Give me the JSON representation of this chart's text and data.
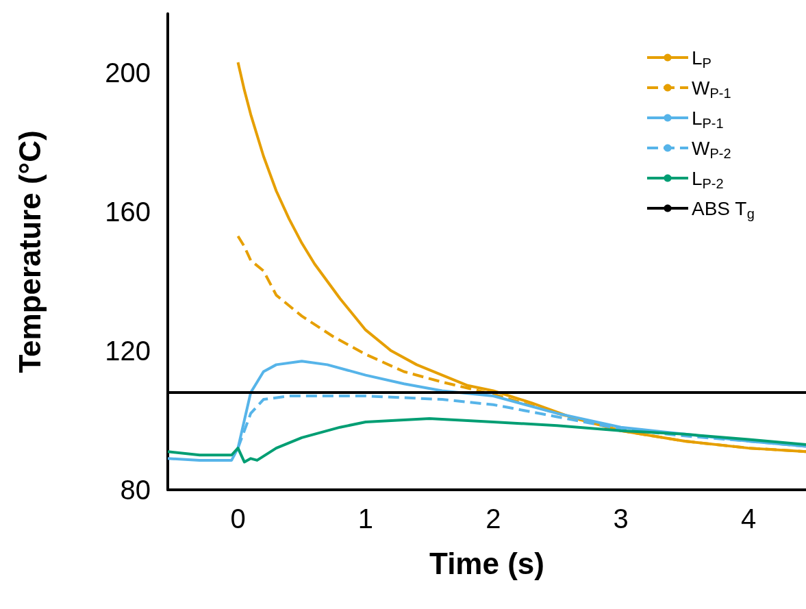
{
  "chart_data": {
    "type": "line",
    "xlabel": "Time (s)",
    "ylabel": "Temperature (°C)",
    "xlim": [
      -0.55,
      4.45
    ],
    "ylim": [
      80,
      217
    ],
    "xticks": [
      0,
      1,
      2,
      3,
      4
    ],
    "yticks": [
      80,
      120,
      160,
      200
    ],
    "grid": false,
    "legend": "top right",
    "marker": "none",
    "series": [
      {
        "name": "L$_{P}$",
        "color": "#e69f00",
        "line_style": "solid",
        "x": [
          0,
          0.05,
          0.1,
          0.2,
          0.3,
          0.4,
          0.5,
          0.6,
          0.8,
          1.0,
          1.2,
          1.4,
          1.6,
          1.8,
          2.0,
          2.3,
          2.6,
          3.0,
          3.5,
          4.0,
          4.45
        ],
        "values": [
          203,
          195,
          188,
          176,
          166,
          158,
          151,
          145,
          135,
          126,
          120,
          116,
          113,
          110,
          108.5,
          105,
          101,
          97,
          94,
          92,
          91
        ]
      },
      {
        "name": "W$_{P-1}$",
        "color": "#e69f00",
        "line_style": "dashed",
        "x": [
          0,
          0.05,
          0.1,
          0.2,
          0.3,
          0.5,
          0.75,
          1.0,
          1.3,
          1.6,
          2.0,
          2.5,
          3.0,
          3.5,
          4.0,
          4.45
        ],
        "values": [
          153,
          150,
          146,
          143,
          136,
          130,
          124,
          119,
          114,
          111,
          107.5,
          102,
          97,
          94,
          92,
          91
        ]
      },
      {
        "name": "L$_{P-1}$",
        "color": "#56b4e9",
        "line_style": "solid",
        "x": [
          -0.55,
          -0.3,
          -0.05,
          0,
          0.05,
          0.1,
          0.2,
          0.3,
          0.5,
          0.7,
          1.0,
          1.3,
          1.6,
          2.0,
          2.5,
          3.0,
          3.5,
          4.0,
          4.45
        ],
        "values": [
          89,
          88.5,
          88.5,
          92,
          100,
          108,
          114,
          116,
          117,
          116,
          113,
          110.5,
          108.5,
          107,
          102,
          98,
          96,
          94,
          92.5
        ]
      },
      {
        "name": "W$_{P-2}$",
        "color": "#56b4e9",
        "line_style": "dashed",
        "x": [
          0,
          0.1,
          0.2,
          0.4,
          0.7,
          1.0,
          1.3,
          1.6,
          2.0,
          2.5,
          3.0,
          3.5,
          4.0,
          4.45
        ],
        "values": [
          92,
          102,
          106,
          107,
          107,
          107,
          106.5,
          106,
          104.5,
          101,
          97.5,
          95.5,
          94,
          92.5
        ]
      },
      {
        "name": "L$_{P-2}$",
        "color": "#009e73",
        "line_style": "solid",
        "x": [
          -0.55,
          -0.3,
          -0.05,
          0,
          0.05,
          0.1,
          0.15,
          0.3,
          0.5,
          0.8,
          1.0,
          1.5,
          2.0,
          2.5,
          3.0,
          3.5,
          4.0,
          4.45
        ],
        "values": [
          91,
          90,
          90,
          92,
          88,
          89,
          88.5,
          92,
          95,
          98,
          99.5,
          100.5,
          99.5,
          98.5,
          97,
          96,
          94.5,
          93
        ]
      }
    ],
    "ref_lines": [
      {
        "axis": "y",
        "value": 108,
        "label": "ABS T$_{g}$",
        "color": "#000000",
        "line_style": "solid"
      }
    ]
  }
}
